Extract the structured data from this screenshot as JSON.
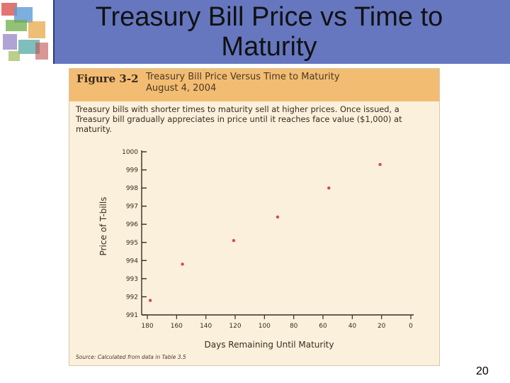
{
  "slide": {
    "title": "Treasury Bill Price vs Time to Maturity",
    "page_number": "20"
  },
  "figure": {
    "number": "Figure 3-2",
    "caption_line1": "Treasury Bill Price Versus Time to Maturity",
    "caption_line2": "August 4, 2004",
    "description": "Treasury bills with shorter times to maturity sell at higher prices. Once issued, a Treasury bill gradually appreciates in price until it reaches face value ($1,000) at maturity.",
    "source": "Source: Calculated from data in Table 3.5"
  },
  "colors": {
    "title_bar": "#6677c0",
    "figure_background": "#fbf0dc",
    "figure_header": "#f2bc72",
    "points": "#d94a4a"
  },
  "chart_data": {
    "type": "scatter",
    "xlabel": "Days Remaining Until Maturity",
    "ylabel": "Price of T-bills",
    "xlim": [
      180,
      0
    ],
    "ylim": [
      991,
      1000
    ],
    "x_reversed": true,
    "x_ticks": [
      180,
      160,
      140,
      120,
      100,
      80,
      60,
      40,
      20,
      0
    ],
    "y_ticks": [
      991,
      992,
      993,
      994,
      995,
      996,
      997,
      998,
      999,
      1000
    ],
    "grid": false,
    "points": [
      {
        "x": 178,
        "y": 991.8
      },
      {
        "x": 156,
        "y": 993.8
      },
      {
        "x": 121,
        "y": 995.1
      },
      {
        "x": 91,
        "y": 996.4
      },
      {
        "x": 56,
        "y": 998.0
      },
      {
        "x": 21,
        "y": 999.3
      }
    ]
  }
}
